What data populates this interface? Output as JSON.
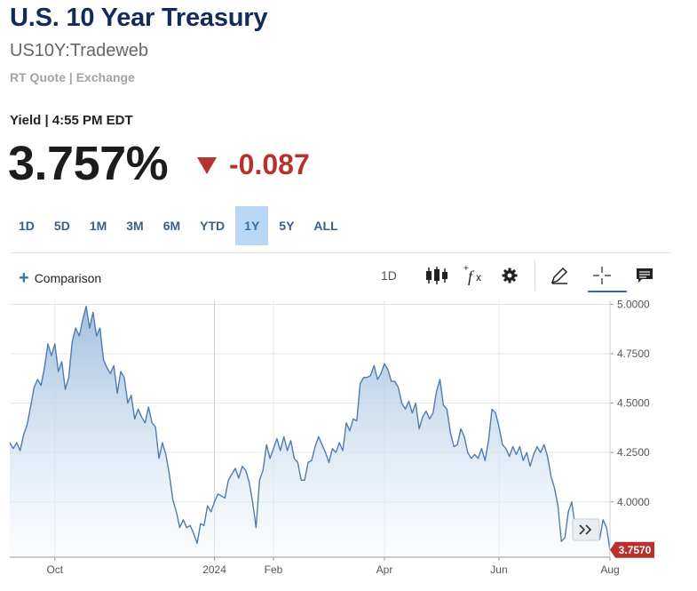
{
  "header": {
    "title": "U.S. 10 Year Treasury",
    "symbol": "US10Y:Tradeweb",
    "quote_source": "RT Quote | Exchange"
  },
  "quote": {
    "label": "Yield | 4:55 PM EDT",
    "price": "3.757%",
    "change": "-0.087",
    "change_color": "#b8322d"
  },
  "ranges": [
    "1D",
    "5D",
    "1M",
    "3M",
    "6M",
    "YTD",
    "1Y",
    "5Y",
    "ALL"
  ],
  "active_range": "1Y",
  "toolbar": {
    "comparison_label": "Comparison",
    "interval_label": "1D",
    "icons": [
      "candlestick-icon",
      "function-icon",
      "gear-icon",
      "pencil-icon",
      "crosshair-icon",
      "comment-icon"
    ]
  },
  "chart_data": {
    "type": "area",
    "series": [
      {
        "values": [
          4.3,
          4.27,
          4.3,
          4.26,
          4.34,
          4.39,
          4.48,
          4.58,
          4.62,
          4.59,
          4.68,
          4.8,
          4.74,
          4.8,
          4.66,
          4.71,
          4.57,
          4.63,
          4.81,
          4.88,
          4.84,
          4.92,
          4.99,
          4.88,
          4.96,
          4.84,
          4.88,
          4.72,
          4.68,
          4.65,
          4.69,
          4.55,
          4.66,
          4.63,
          4.5,
          4.54,
          4.42,
          4.47,
          4.43,
          4.4,
          4.48,
          4.4,
          4.38,
          4.22,
          4.3,
          4.24,
          4.14,
          4.01,
          3.95,
          3.87,
          3.91,
          3.87,
          3.88,
          3.84,
          3.79,
          3.89,
          3.88,
          3.98,
          3.95,
          4.0,
          4.04,
          4.03,
          4.02,
          4.11,
          4.14,
          4.17,
          4.12,
          4.18,
          4.16,
          4.1,
          4.0,
          3.87,
          4.11,
          4.16,
          4.29,
          4.22,
          4.27,
          4.32,
          4.26,
          4.33,
          4.26,
          4.31,
          4.22,
          4.2,
          4.11,
          4.11,
          4.2,
          4.21,
          4.28,
          4.33,
          4.29,
          4.25,
          4.2,
          4.27,
          4.25,
          4.3,
          4.26,
          4.4,
          4.36,
          4.42,
          4.41,
          4.6,
          4.63,
          4.63,
          4.64,
          4.69,
          4.62,
          4.65,
          4.7,
          4.67,
          4.61,
          4.61,
          4.58,
          4.5,
          4.47,
          4.51,
          4.45,
          4.5,
          4.37,
          4.43,
          4.46,
          4.42,
          4.45,
          4.56,
          4.62,
          4.49,
          4.47,
          4.35,
          4.28,
          4.29,
          4.37,
          4.33,
          4.25,
          4.22,
          4.24,
          4.22,
          4.27,
          4.21,
          4.31,
          4.47,
          4.45,
          4.38,
          4.29,
          4.27,
          4.23,
          4.28,
          4.24,
          4.28,
          4.21,
          4.25,
          4.18,
          4.24,
          4.28,
          4.25,
          4.29,
          4.23,
          4.13,
          4.07,
          3.98,
          3.8,
          3.82,
          3.95,
          4.0,
          3.87,
          3.86,
          3.9,
          3.86,
          3.89,
          3.82,
          3.84,
          3.81,
          3.91,
          3.87,
          3.757
        ],
        "color": "#4f7cae"
      }
    ],
    "x_tick_labels": [
      "Oct",
      "2024",
      "Feb",
      "Apr",
      "Jun",
      "Aug"
    ],
    "y_tick_labels": [
      "5.0000",
      "4.7500",
      "4.5000",
      "4.2500",
      "4.0000"
    ],
    "last_value_label": "3.7570",
    "last_value_color": "#b8322d",
    "ylim": [
      3.72,
      5.02
    ]
  }
}
